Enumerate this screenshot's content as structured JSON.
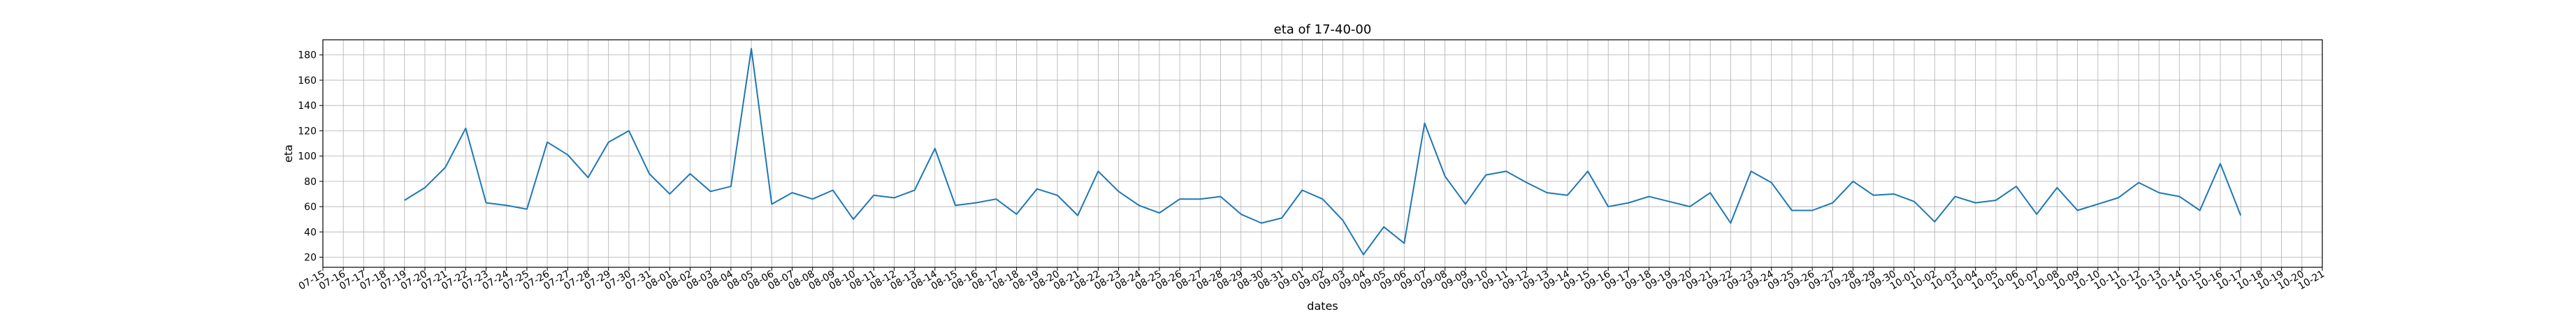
{
  "chart_data": {
    "type": "line",
    "title": "eta of 17-40-00",
    "xlabel": "dates",
    "ylabel": "eta",
    "x_start": "2018-07-15",
    "x_end": "2018-10-21",
    "xlim": [
      "2018-07-15",
      "2018-10-21"
    ],
    "ylim": [
      12,
      192
    ],
    "yticks": [
      20,
      40,
      60,
      80,
      100,
      120,
      140,
      160,
      180
    ],
    "grid": true,
    "x_tick_labels": [
      "07-15",
      "07-16",
      "07-17",
      "07-18",
      "07-19",
      "07-20",
      "07-21",
      "07-22",
      "07-23",
      "07-24",
      "07-25",
      "07-26",
      "07-27",
      "07-28",
      "07-29",
      "07-30",
      "07-31",
      "08-01",
      "08-02",
      "08-03",
      "08-04",
      "08-05",
      "08-06",
      "08-07",
      "08-08",
      "08-09",
      "08-10",
      "08-11",
      "08-12",
      "08-13",
      "08-14",
      "08-15",
      "08-16",
      "08-17",
      "08-18",
      "08-19",
      "08-20",
      "08-21",
      "08-22",
      "08-23",
      "08-24",
      "08-25",
      "08-26",
      "08-27",
      "08-28",
      "08-29",
      "08-30",
      "08-31",
      "09-01",
      "09-02",
      "09-03",
      "09-04",
      "09-05",
      "09-06",
      "09-07",
      "09-08",
      "09-09",
      "09-10",
      "09-11",
      "09-12",
      "09-13",
      "09-14",
      "09-15",
      "09-16",
      "09-17",
      "09-18",
      "09-19",
      "09-20",
      "09-21",
      "09-22",
      "09-23",
      "09-24",
      "09-25",
      "09-26",
      "09-27",
      "09-28",
      "09-29",
      "09-30",
      "10-01",
      "10-02",
      "10-03",
      "10-04",
      "10-05",
      "10-06",
      "10-07",
      "10-08",
      "10-09",
      "10-10",
      "10-11",
      "10-12",
      "10-13",
      "10-14",
      "10-15",
      "10-16",
      "10-17",
      "10-18",
      "10-19",
      "10-20",
      "10-21"
    ],
    "series": [
      {
        "color": "#1f77b4",
        "x": [
          "07-19",
          "07-20",
          "07-21",
          "07-22",
          "07-23",
          "07-24",
          "07-25",
          "07-26",
          "07-27",
          "07-28",
          "07-29",
          "07-30",
          "07-31",
          "08-01",
          "08-02",
          "08-03",
          "08-04",
          "08-05",
          "08-06",
          "08-07",
          "08-08",
          "08-09",
          "08-10",
          "08-11",
          "08-12",
          "08-13",
          "08-14",
          "08-15",
          "08-16",
          "08-17",
          "08-18",
          "08-19",
          "08-20",
          "08-21",
          "08-22",
          "08-23",
          "08-24",
          "08-25",
          "08-26",
          "08-27",
          "08-28",
          "08-29",
          "08-30",
          "08-31",
          "09-01",
          "09-02",
          "09-03",
          "09-04",
          "09-05",
          "09-06",
          "09-07",
          "09-08",
          "09-09",
          "09-10",
          "09-11",
          "09-12",
          "09-13",
          "09-14",
          "09-15",
          "09-16",
          "09-17",
          "09-18",
          "09-19",
          "09-20",
          "09-21",
          "09-22",
          "09-23",
          "09-24",
          "09-25",
          "09-26",
          "09-27",
          "09-28",
          "09-29",
          "09-30",
          "10-01",
          "10-02",
          "10-03",
          "10-04",
          "10-05",
          "10-06",
          "10-07",
          "10-08",
          "10-09",
          "10-10",
          "10-11",
          "10-12",
          "10-13",
          "10-14",
          "10-15",
          "10-16",
          "10-17"
        ],
        "y": [
          65,
          75,
          91,
          122,
          63,
          61,
          58,
          111,
          101,
          83,
          111,
          120,
          86,
          70,
          86,
          72,
          76,
          185,
          62,
          71,
          66,
          73,
          50,
          69,
          67,
          73,
          106,
          61,
          63,
          66,
          54,
          74,
          69,
          53,
          88,
          72,
          61,
          55,
          66,
          66,
          68,
          54,
          47,
          51,
          73,
          66,
          49,
          22,
          44,
          31,
          126,
          84,
          62,
          85,
          88,
          79,
          71,
          69,
          88,
          60,
          63,
          68,
          64,
          60,
          71,
          47,
          88,
          79,
          57,
          57,
          63,
          80,
          69,
          70,
          64,
          48,
          68,
          63,
          65,
          76,
          54,
          75,
          57,
          62,
          67,
          79,
          71,
          68,
          57,
          94,
          53
        ]
      }
    ]
  }
}
